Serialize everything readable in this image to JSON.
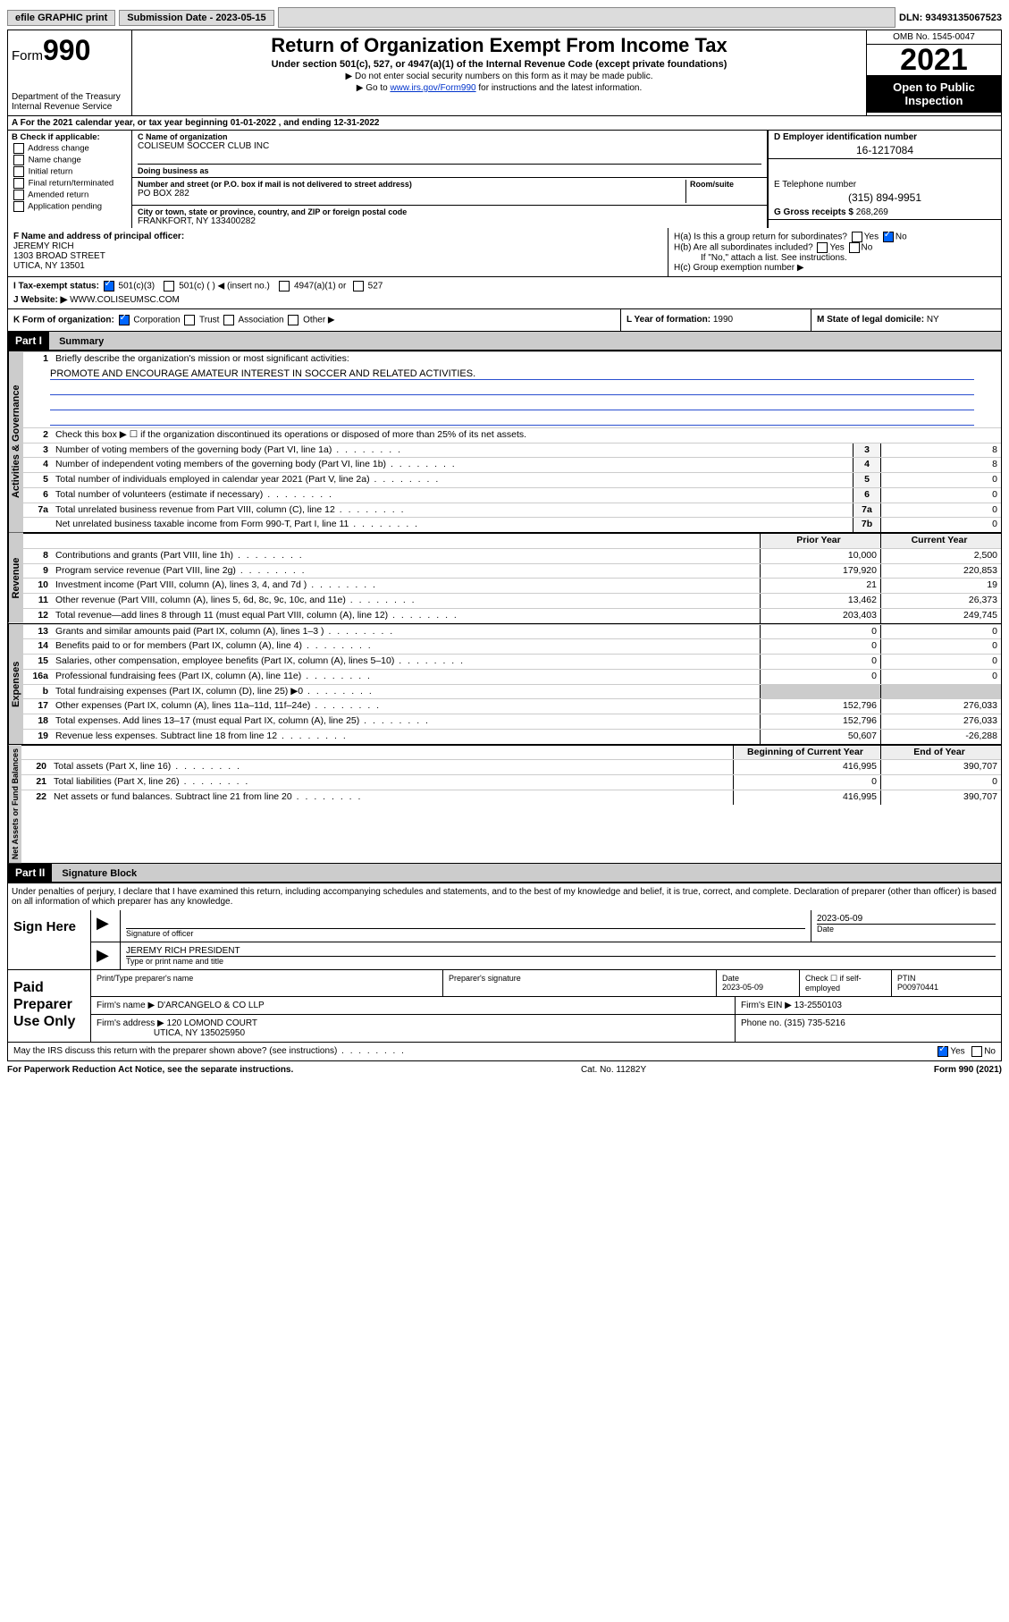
{
  "topbar": {
    "efile": "efile GRAPHIC print",
    "sub_label": "Submission Date - 2023-05-15",
    "dln": "DLN: 93493135067523"
  },
  "header": {
    "form_prefix": "Form",
    "form_num": "990",
    "title": "Return of Organization Exempt From Income Tax",
    "subtitle": "Under section 501(c), 527, or 4947(a)(1) of the Internal Revenue Code (except private foundations)",
    "note1": "▶ Do not enter social security numbers on this form as it may be made public.",
    "note2_pre": "▶ Go to ",
    "note2_link": "www.irs.gov/Form990",
    "note2_post": " for instructions and the latest information.",
    "dept": "Department of the Treasury\nInternal Revenue Service",
    "omb": "OMB No. 1545-0047",
    "year": "2021",
    "open": "Open to Public Inspection"
  },
  "rowA": "A For the 2021 calendar year, or tax year beginning 01-01-2022   , and ending 12-31-2022",
  "colB": {
    "caption": "B Check if applicable:",
    "items": [
      "Address change",
      "Name change",
      "Initial return",
      "Final return/terminated",
      "Amended return",
      "Application pending"
    ]
  },
  "colC": {
    "c_caption": "C Name of organization",
    "c_name": "COLISEUM SOCCER CLUB INC",
    "dba_caption": "Doing business as",
    "dba": "",
    "addr_caption": "Number and street (or P.O. box if mail is not delivered to street address)",
    "room_caption": "Room/suite",
    "addr": "PO BOX 282",
    "city_caption": "City or town, state or province, country, and ZIP or foreign postal code",
    "city": "FRANKFORT, NY  133400282"
  },
  "colD": {
    "d_caption": "D Employer identification number",
    "d_val": "16-1217084",
    "e_caption": "E Telephone number",
    "e_val": "(315) 894-9951",
    "g_caption": "G Gross receipts $ ",
    "g_val": "268,269"
  },
  "f": {
    "caption": "F  Name and address of principal officer:",
    "name": "JEREMY RICH",
    "addr1": "1303 BROAD STREET",
    "addr2": "UTICA, NY  13501"
  },
  "h": {
    "ha": "H(a)  Is this a group return for subordinates?",
    "hb": "H(b)  Are all subordinates included?",
    "hb_note": "If \"No,\" attach a list. See instructions.",
    "hc": "H(c)  Group exemption number ▶"
  },
  "i": {
    "label": "I  Tax-exempt status:",
    "opts": [
      "501(c)(3)",
      "501(c) (   ) ◀ (insert no.)",
      "4947(a)(1) or",
      "527"
    ]
  },
  "j": {
    "label": "J  Website: ▶",
    "val": "WWW.COLISEUMSC.COM"
  },
  "k": {
    "label": "K Form of organization:",
    "opts": [
      "Corporation",
      "Trust",
      "Association",
      "Other ▶"
    ]
  },
  "l": {
    "label": "L Year of formation: ",
    "val": "1990"
  },
  "m": {
    "label": "M State of legal domicile: ",
    "val": "NY"
  },
  "partI": {
    "hdr": "Part I",
    "title": "Summary",
    "q1": "Briefly describe the organization's mission or most significant activities:",
    "q1val": "PROMOTE AND ENCOURAGE AMATEUR INTEREST IN SOCCER AND RELATED ACTIVITIES.",
    "q2": "Check this box ▶ ☐  if the organization discontinued its operations or disposed of more than 25% of its net assets.",
    "lines_gov": [
      {
        "n": "3",
        "t": "Number of voting members of the governing body (Part VI, line 1a)",
        "box": "3",
        "v": "8"
      },
      {
        "n": "4",
        "t": "Number of independent voting members of the governing body (Part VI, line 1b)",
        "box": "4",
        "v": "8"
      },
      {
        "n": "5",
        "t": "Total number of individuals employed in calendar year 2021 (Part V, line 2a)",
        "box": "5",
        "v": "0"
      },
      {
        "n": "6",
        "t": "Total number of volunteers (estimate if necessary)",
        "box": "6",
        "v": "0"
      },
      {
        "n": "7a",
        "t": "Total unrelated business revenue from Part VIII, column (C), line 12",
        "box": "7a",
        "v": "0"
      },
      {
        "n": "",
        "t": "Net unrelated business taxable income from Form 990-T, Part I, line 11",
        "box": "7b",
        "v": "0"
      }
    ],
    "col_prior": "Prior Year",
    "col_current": "Current Year",
    "lines_rev": [
      {
        "n": "8",
        "t": "Contributions and grants (Part VIII, line 1h)",
        "p": "10,000",
        "c": "2,500"
      },
      {
        "n": "9",
        "t": "Program service revenue (Part VIII, line 2g)",
        "p": "179,920",
        "c": "220,853"
      },
      {
        "n": "10",
        "t": "Investment income (Part VIII, column (A), lines 3, 4, and 7d )",
        "p": "21",
        "c": "19"
      },
      {
        "n": "11",
        "t": "Other revenue (Part VIII, column (A), lines 5, 6d, 8c, 9c, 10c, and 11e)",
        "p": "13,462",
        "c": "26,373"
      },
      {
        "n": "12",
        "t": "Total revenue—add lines 8 through 11 (must equal Part VIII, column (A), line 12)",
        "p": "203,403",
        "c": "249,745"
      }
    ],
    "lines_exp": [
      {
        "n": "13",
        "t": "Grants and similar amounts paid (Part IX, column (A), lines 1–3 )",
        "p": "0",
        "c": "0"
      },
      {
        "n": "14",
        "t": "Benefits paid to or for members (Part IX, column (A), line 4)",
        "p": "0",
        "c": "0"
      },
      {
        "n": "15",
        "t": "Salaries, other compensation, employee benefits (Part IX, column (A), lines 5–10)",
        "p": "0",
        "c": "0"
      },
      {
        "n": "16a",
        "t": "Professional fundraising fees (Part IX, column (A), line 11e)",
        "p": "0",
        "c": "0"
      },
      {
        "n": "b",
        "t": "Total fundraising expenses (Part IX, column (D), line 25) ▶0",
        "p": "",
        "c": "",
        "shade": true
      },
      {
        "n": "17",
        "t": "Other expenses (Part IX, column (A), lines 11a–11d, 11f–24e)",
        "p": "152,796",
        "c": "276,033"
      },
      {
        "n": "18",
        "t": "Total expenses. Add lines 13–17 (must equal Part IX, column (A), line 25)",
        "p": "152,796",
        "c": "276,033"
      },
      {
        "n": "19",
        "t": "Revenue less expenses. Subtract line 18 from line 12",
        "p": "50,607",
        "c": "-26,288"
      }
    ],
    "col_begin": "Beginning of Current Year",
    "col_end": "End of Year",
    "lines_net": [
      {
        "n": "20",
        "t": "Total assets (Part X, line 16)",
        "p": "416,995",
        "c": "390,707"
      },
      {
        "n": "21",
        "t": "Total liabilities (Part X, line 26)",
        "p": "0",
        "c": "0"
      },
      {
        "n": "22",
        "t": "Net assets or fund balances. Subtract line 21 from line 20",
        "p": "416,995",
        "c": "390,707"
      }
    ]
  },
  "vtabs": {
    "gov": "Activities & Governance",
    "rev": "Revenue",
    "exp": "Expenses",
    "net": "Net Assets or Fund Balances"
  },
  "partII": {
    "hdr": "Part II",
    "title": "Signature Block",
    "penalty": "Under penalties of perjury, I declare that I have examined this return, including accompanying schedules and statements, and to the best of my knowledge and belief, it is true, correct, and complete. Declaration of preparer (other than officer) is based on all information of which preparer has any knowledge."
  },
  "sign": {
    "label": "Sign Here",
    "sig_caption": "Signature of officer",
    "date": "2023-05-09",
    "date_caption": "Date",
    "name": "JEREMY RICH PRESIDENT",
    "name_caption": "Type or print name and title"
  },
  "paid": {
    "label": "Paid Preparer Use Only",
    "h1": "Print/Type preparer's name",
    "h2": "Preparer's signature",
    "h3": "Date",
    "h3v": "2023-05-09",
    "h4": "Check ☐ if self-employed",
    "h5": "PTIN",
    "h5v": "P00970441",
    "firm_name_lbl": "Firm's name     ▶",
    "firm_name": "D'ARCANGELO & CO LLP",
    "firm_ein_lbl": "Firm's EIN ▶",
    "firm_ein": "13-2550103",
    "firm_addr_lbl": "Firm's address ▶",
    "firm_addr1": "120 LOMOND COURT",
    "firm_addr2": "UTICA, NY  135025950",
    "phone_lbl": "Phone no.",
    "phone": "(315) 735-5216"
  },
  "may": "May the IRS discuss this return with the preparer shown above? (see instructions)",
  "footer": {
    "left": "For Paperwork Reduction Act Notice, see the separate instructions.",
    "mid": "Cat. No. 11282Y",
    "right": "Form 990 (2021)"
  }
}
